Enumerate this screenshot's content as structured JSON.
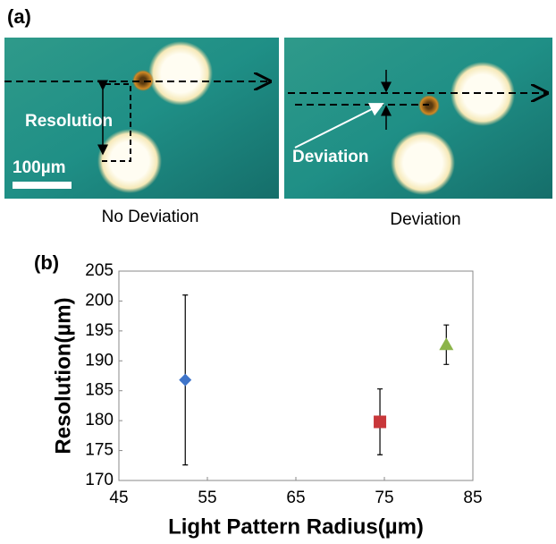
{
  "panel_a": {
    "label": "(a)",
    "resolution_label": "Resolution",
    "scale_bar": "100µm",
    "deviation_label": "Deviation",
    "caption_left": "No Deviation",
    "caption_right": "Deviation"
  },
  "chart_data": {
    "type": "scatter",
    "panel_label": "(b)",
    "x_label": "Light Pattern Radius(µm)",
    "y_label": "Resolution(µm)",
    "x": [
      52.5,
      74.5,
      82
    ],
    "values": [
      186.8,
      179.8,
      192.7
    ],
    "errors": [
      14.2,
      5.5,
      3.3
    ],
    "colors": [
      "#3f74c9",
      "#c8373a",
      "#8cb44a"
    ],
    "markers": [
      "diamond",
      "square",
      "triangle"
    ],
    "xlim": [
      45,
      85
    ],
    "xticks": [
      45,
      55,
      65,
      75,
      85
    ],
    "ylim": [
      170,
      205
    ],
    "yticks": [
      170,
      175,
      180,
      185,
      190,
      195,
      200,
      205
    ],
    "grid": false
  }
}
